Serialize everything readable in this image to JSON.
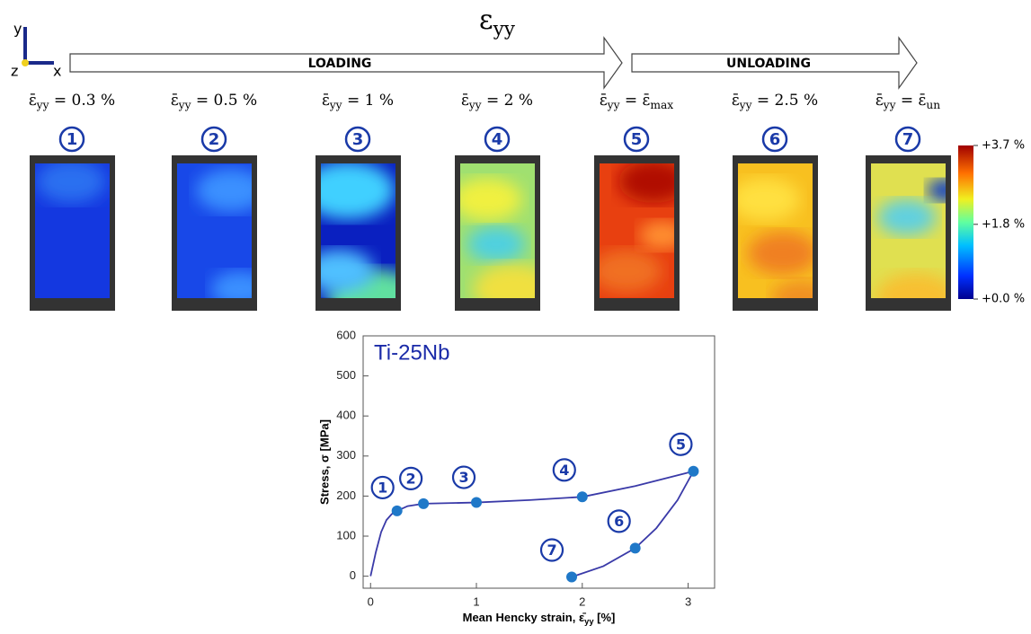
{
  "figure": {
    "title": [
      "ε",
      "yy"
    ],
    "axes_icon": {
      "y": "y",
      "z": "z",
      "x": "x"
    },
    "arrows": [
      "LOADING",
      "UNLOADING"
    ],
    "panels": [
      {
        "number": "1",
        "label": [
          "ε̄",
          "yy",
          " = 0.3 %"
        ]
      },
      {
        "number": "2",
        "label": [
          "ε̄",
          "yy",
          " = 0.5 %"
        ]
      },
      {
        "number": "3",
        "label": [
          "ε̄",
          "yy",
          " = 1 %"
        ]
      },
      {
        "number": "4",
        "label": [
          "ε̄",
          "yy",
          " = 2 %"
        ]
      },
      {
        "number": "5",
        "label": [
          "ε̄",
          "yy",
          " = ε̄",
          "max"
        ]
      },
      {
        "number": "6",
        "label": [
          "ε̄",
          "yy",
          " = 2.5 %"
        ]
      },
      {
        "number": "7",
        "label": [
          "ε̄",
          "yy",
          " = ε̄",
          "un"
        ]
      }
    ],
    "colorbar": {
      "lim": [
        0,
        3.7
      ],
      "ticks": [
        {
          "value": 3.7,
          "label": "+3.7 %"
        },
        {
          "value": 1.8,
          "label": "+1.8 %"
        },
        {
          "value": 0,
          "label": "+0.0 %"
        }
      ]
    }
  },
  "chart_data": {
    "type": "line",
    "annotation": "Ti-25Nb",
    "xlabel": [
      "Mean Hencky strain, ε̄",
      "yy",
      " [%]"
    ],
    "ylabel": "Stress, σ [MPa]",
    "xlim": [
      -0.07,
      3.25
    ],
    "xticks": [
      0,
      1,
      2,
      3
    ],
    "ylim": [
      -30,
      600
    ],
    "yticks": [
      0,
      100,
      200,
      300,
      400,
      500,
      600
    ],
    "series": [
      {
        "color": "#3a3aa8",
        "x": [
          0,
          0.05,
          0.1,
          0.15,
          0.2,
          0.25,
          0.35,
          0.5,
          1,
          1.5,
          2,
          2.5,
          3.05
        ],
        "values": [
          0,
          60,
          110,
          140,
          155,
          163,
          175,
          181,
          184,
          190,
          198,
          225,
          262
        ]
      },
      {
        "color": "#3a3aa8",
        "x": [
          3.05,
          2.9,
          2.7,
          2.5,
          2.2,
          1.9
        ],
        "values": [
          262,
          190,
          120,
          70,
          25,
          -2
        ]
      }
    ],
    "points": {
      "color": "#1f78c8",
      "labels": [
        "1",
        "2",
        "3",
        "4",
        "5",
        "6",
        "7"
      ],
      "x": [
        0.25,
        0.5,
        1.0,
        2.0,
        3.05,
        2.5,
        1.9
      ],
      "values": [
        163,
        181,
        184,
        198,
        262,
        70,
        -2
      ]
    }
  }
}
